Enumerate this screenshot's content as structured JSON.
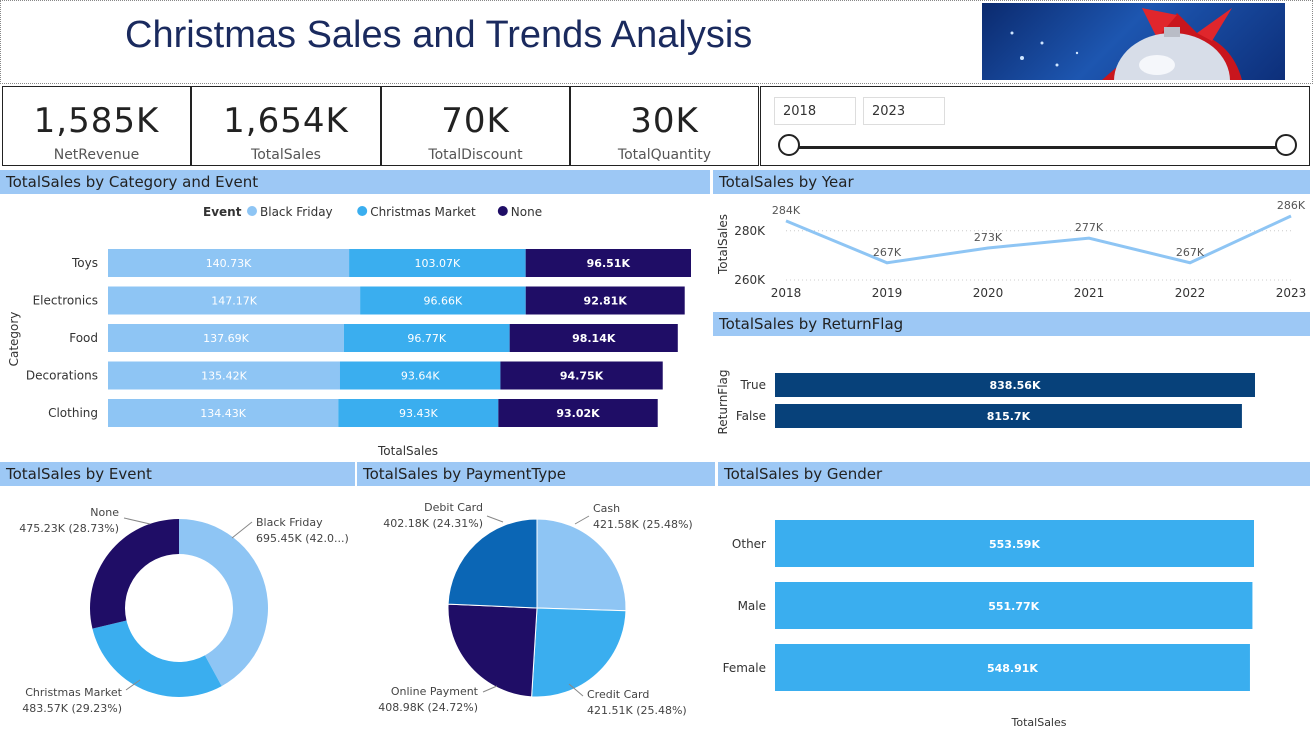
{
  "title": "Christmas Sales and Trends Analysis",
  "kpis": [
    {
      "value": "1,585K",
      "label": "NetRevenue"
    },
    {
      "value": "1,654K",
      "label": "TotalSales"
    },
    {
      "value": "70K",
      "label": "TotalDiscount"
    },
    {
      "value": "30K",
      "label": "TotalQuantity"
    }
  ],
  "year_slicer": {
    "start": "2018",
    "end": "2023"
  },
  "colors": {
    "black_friday": "#8ec5f4",
    "christmas_market": "#3aaeef",
    "none": "#1f0d66",
    "return": "#07417a",
    "header": "#9dc8f5"
  },
  "chart_data": [
    {
      "type": "bar",
      "title": "TotalSales by Category and Event",
      "xlabel": "TotalSales",
      "ylabel": "Category",
      "legend_title": "Event",
      "legend": "top",
      "categories": [
        "Toys",
        "Electronics",
        "Food",
        "Decorations",
        "Clothing"
      ],
      "series": [
        {
          "name": "Black Friday",
          "values": [
            140.73,
            147.17,
            137.69,
            135.42,
            134.43
          ],
          "labels": [
            "140.73K",
            "147.17K",
            "137.69K",
            "135.42K",
            "134.43K"
          ]
        },
        {
          "name": "Christmas Market",
          "values": [
            103.07,
            96.66,
            96.77,
            93.64,
            93.43
          ],
          "labels": [
            "103.07K",
            "96.66K",
            "96.77K",
            "93.64K",
            "93.43K"
          ]
        },
        {
          "name": "None",
          "values": [
            96.51,
            92.81,
            98.14,
            94.75,
            93.02
          ],
          "labels": [
            "96.51K",
            "92.81K",
            "98.14K",
            "94.75K",
            "93.02K"
          ]
        }
      ]
    },
    {
      "type": "line",
      "title": "TotalSales by Year",
      "ylabel": "TotalSales",
      "x": [
        "2018",
        "2019",
        "2020",
        "2021",
        "2022",
        "2023"
      ],
      "values": [
        284,
        267,
        273,
        277,
        267,
        286
      ],
      "labels": [
        "284K",
        "267K",
        "273K",
        "277K",
        "267K",
        "286K"
      ],
      "yticks": [
        "280K",
        "260K"
      ],
      "ylim": [
        260,
        286
      ]
    },
    {
      "type": "bar",
      "title": "TotalSales by ReturnFlag",
      "ylabel": "ReturnFlag",
      "categories": [
        "True",
        "False"
      ],
      "values": [
        838.56,
        815.7
      ],
      "labels": [
        "838.56K",
        "815.7K"
      ]
    },
    {
      "type": "pie",
      "title": "TotalSales by Event",
      "slices": [
        {
          "name": "Black Friday",
          "value": 695.45,
          "label": "695.45K (42.0...)"
        },
        {
          "name": "Christmas Market",
          "value": 483.57,
          "label": "483.57K (29.23%)"
        },
        {
          "name": "None",
          "value": 475.23,
          "label": "475.23K (28.73%)"
        }
      ]
    },
    {
      "type": "pie",
      "title": "TotalSales by PaymentType",
      "slices": [
        {
          "name": "Cash",
          "value": 421.58,
          "label": "421.58K (25.48%)"
        },
        {
          "name": "Credit Card",
          "value": 421.51,
          "label": "421.51K (25.48%)"
        },
        {
          "name": "Online Payment",
          "value": 408.98,
          "label": "408.98K (24.72%)"
        },
        {
          "name": "Debit Card",
          "value": 402.18,
          "label": "402.18K (24.31%)"
        }
      ]
    },
    {
      "type": "bar",
      "title": "TotalSales by Gender",
      "xlabel": "TotalSales",
      "categories": [
        "Other",
        "Male",
        "Female"
      ],
      "values": [
        553.59,
        551.77,
        548.91
      ],
      "labels": [
        "553.59K",
        "551.77K",
        "548.91K"
      ]
    }
  ]
}
